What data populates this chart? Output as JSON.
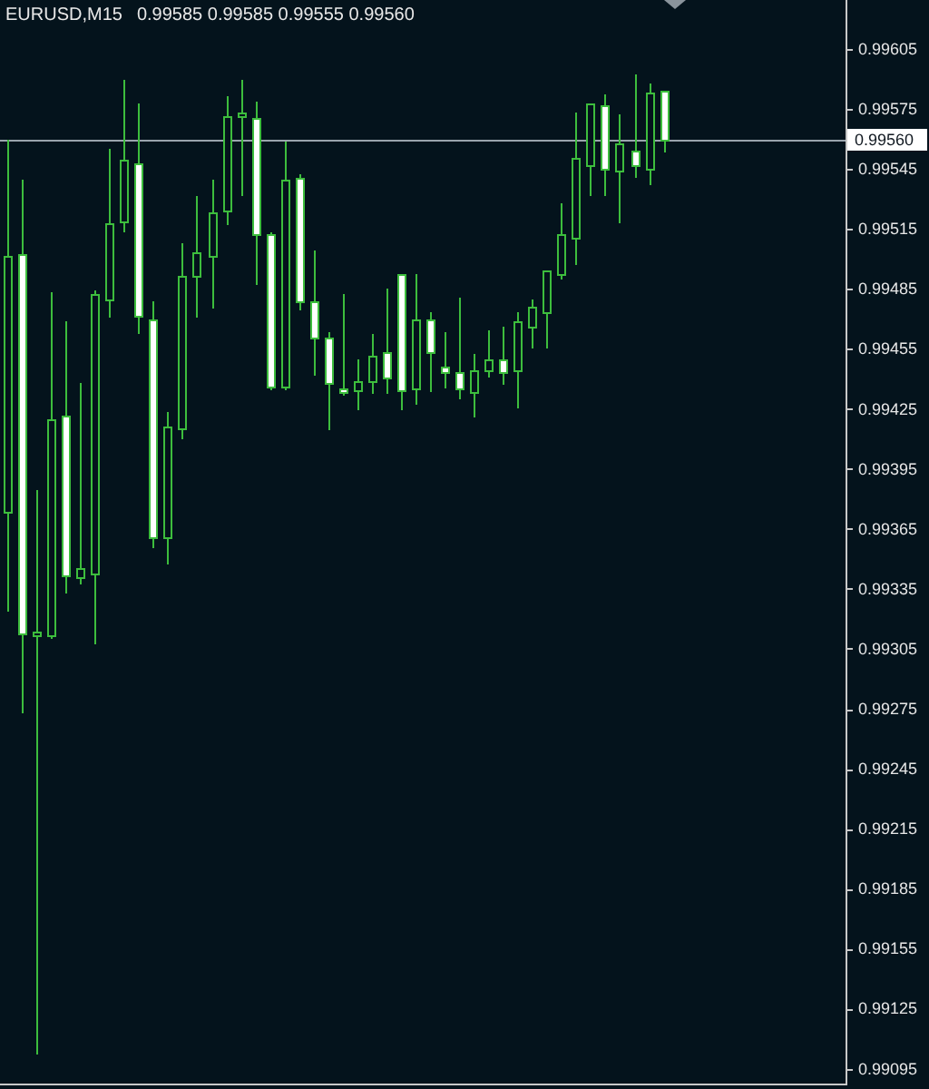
{
  "chart_data": {
    "type": "candlestick",
    "title": "EURUSD,M15",
    "subtitle": "0.99585 0.99585 0.99555 0.99560",
    "categories": [
      null,
      null,
      null,
      null,
      null,
      null,
      null,
      null,
      null,
      null,
      null,
      null,
      null,
      null,
      null,
      null,
      null,
      null,
      null,
      null,
      null,
      null,
      null,
      null,
      null,
      null,
      null,
      null,
      null,
      null,
      null,
      null,
      null,
      null,
      null,
      null,
      null,
      null,
      null,
      null,
      null,
      null,
      null,
      null,
      null,
      null,
      null,
      null,
      null,
      null,
      null,
      null,
      null,
      null,
      null,
      null,
      null,
      null
    ],
    "ohlc": [
      [
        0.99374,
        0.9956,
        0.99325,
        0.99502
      ],
      [
        0.99503,
        0.9954,
        0.99274,
        0.99313
      ],
      [
        0.99312,
        0.99385,
        0.99103,
        0.99314
      ],
      [
        0.99312,
        0.99484,
        0.99311,
        0.9942
      ],
      [
        0.99422,
        0.99469,
        0.99334,
        0.99342
      ],
      [
        0.99341,
        0.99438,
        0.99339,
        0.99346
      ],
      [
        0.99343,
        0.99485,
        0.99309,
        0.99483
      ],
      [
        0.9948,
        0.99556,
        0.99472,
        0.99518
      ],
      [
        0.99519,
        0.9959,
        0.99515,
        0.9955
      ],
      [
        0.99548,
        0.99578,
        0.99464,
        0.99472
      ],
      [
        0.9947,
        0.99479,
        0.99357,
        0.99361
      ],
      [
        0.99361,
        0.99424,
        0.99349,
        0.99417
      ],
      [
        0.99416,
        0.99508,
        0.99411,
        0.99492
      ],
      [
        0.99492,
        0.99532,
        0.99472,
        0.99504
      ],
      [
        0.99502,
        0.9954,
        0.99477,
        0.99524
      ],
      [
        0.99525,
        0.99582,
        0.99518,
        0.99572
      ],
      [
        0.99572,
        0.9959,
        0.99533,
        0.99574
      ],
      [
        0.99571,
        0.99579,
        0.99488,
        0.99513
      ],
      [
        0.99513,
        0.99514,
        0.99436,
        0.99437
      ],
      [
        0.99437,
        0.99559,
        0.99436,
        0.9954
      ],
      [
        0.99541,
        0.99543,
        0.99476,
        0.99479
      ],
      [
        0.99479,
        0.99505,
        0.99443,
        0.99461
      ],
      [
        0.99461,
        0.99464,
        0.99416,
        0.99438
      ],
      [
        0.99436,
        0.99483,
        0.99433,
        0.99434
      ],
      [
        0.99435,
        0.9945,
        0.99426,
        0.99439
      ],
      [
        0.99439,
        0.99463,
        0.99434,
        0.99452
      ],
      [
        0.99454,
        0.99486,
        0.99434,
        0.99441
      ],
      [
        0.99493,
        0.99493,
        0.99426,
        0.99435
      ],
      [
        0.99436,
        0.99493,
        0.99428,
        0.9947
      ],
      [
        0.9947,
        0.99474,
        0.99435,
        0.99454
      ],
      [
        0.99447,
        0.99464,
        0.99437,
        0.99444
      ],
      [
        0.99444,
        0.99481,
        0.99431,
        0.99436
      ],
      [
        0.99434,
        0.99453,
        0.99422,
        0.99445
      ],
      [
        0.99445,
        0.99465,
        0.99442,
        0.9945
      ],
      [
        0.9945,
        0.99467,
        0.99438,
        0.99444
      ],
      [
        0.99445,
        0.99474,
        0.99427,
        0.99469
      ],
      [
        0.99467,
        0.9948,
        0.99457,
        0.99477
      ],
      [
        0.99474,
        0.99495,
        0.99457,
        0.99495
      ],
      [
        0.99493,
        0.99528,
        0.99491,
        0.99513
      ],
      [
        0.99511,
        0.99574,
        0.99498,
        0.99551
      ],
      [
        0.99547,
        0.99578,
        0.99533,
        0.99578
      ],
      [
        0.99577,
        0.99583,
        0.99533,
        0.99546
      ],
      [
        0.99545,
        0.99573,
        0.99519,
        0.99558
      ],
      [
        0.99555,
        0.99593,
        0.99542,
        0.99547
      ],
      [
        0.99546,
        0.99588,
        0.99538,
        0.99584
      ],
      [
        0.99585,
        0.99585,
        0.99555,
        0.9956
      ],
      null,
      null,
      null,
      null,
      null,
      null,
      null,
      null,
      null,
      null,
      null,
      null
    ],
    "color": "#3dbd3d",
    "colors": [
      "#04131c",
      "#ffffff",
      "#04131c",
      "#04131c",
      "#ffffff",
      "#04131c",
      "#04131c",
      "#04131c",
      "#04131c",
      "#ffffff",
      "#ffffff",
      "#04131c",
      "#04131c",
      "#04131c",
      "#04131c",
      "#04131c",
      "#04131c",
      "#ffffff",
      "#ffffff",
      "#04131c",
      "#ffffff",
      "#ffffff",
      "#ffffff",
      "#ffffff",
      "#04131c",
      "#04131c",
      "#ffffff",
      "#ffffff",
      "#04131c",
      "#ffffff",
      "#ffffff",
      "#ffffff",
      "#04131c",
      "#04131c",
      "#ffffff",
      "#04131c",
      "#04131c",
      "#04131c",
      "#04131c",
      "#04131c",
      "#04131c",
      "#ffffff",
      "#04131c",
      "#ffffff",
      "#04131c",
      "#ffffff",
      null,
      null,
      null,
      null,
      null,
      null,
      null,
      null,
      null,
      null,
      null,
      null
    ],
    "ylim": [
      0.99088,
      0.9963
    ],
    "yticks": [
      0.99095,
      0.99125,
      0.99155,
      0.99185,
      0.99215,
      0.99245,
      0.99275,
      0.99305,
      0.99335,
      0.99365,
      0.99395,
      0.99425,
      0.99455,
      0.99485,
      0.99515,
      0.99545,
      0.99575,
      0.99605
    ],
    "ref_lines": [
      {
        "axis": "y",
        "value": 0.9956,
        "label": "0.99560",
        "color": "#9aa4ad"
      }
    ],
    "grid": false,
    "tick_labels": "y"
  }
}
